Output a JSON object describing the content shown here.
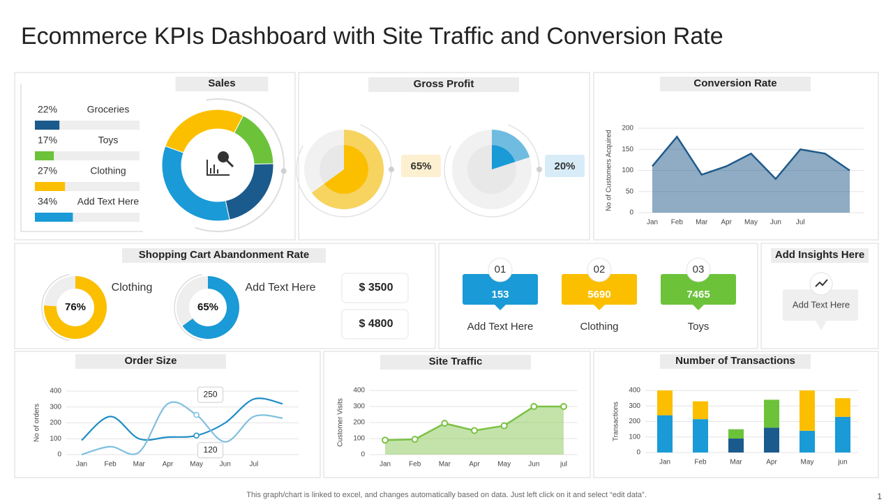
{
  "title": "Ecommerce KPIs Dashboard with Site Traffic and Conversion Rate",
  "footer": "This graph/chart is linked to excel, and changes automatically based on data. Just left click on it and select “edit data”.",
  "page_number": "1",
  "kpis": {
    "items": [
      {
        "number": "01",
        "value": 153,
        "label": "Add Text Here",
        "color": "#1a9ad6"
      },
      {
        "number": "02",
        "value": 5690,
        "label": "Clothing",
        "color": "#fbbf00"
      },
      {
        "number": "03",
        "value": 7465,
        "label": "Toys",
        "color": "#6cc33a"
      }
    ]
  },
  "insights": {
    "title": "Add Insights Here",
    "text": "Add Text Here"
  },
  "chart_data": [
    {
      "type": "progress",
      "title": "Sales",
      "categories": [
        "Groceries",
        "Toys",
        "Clothing",
        "Add Text Here"
      ],
      "values": [
        22,
        17,
        27,
        34
      ],
      "value_labels": [
        "22%",
        "17%",
        "27%",
        "34%"
      ],
      "colors": [
        "#1b5a8c",
        "#6cc33a",
        "#fbbf00",
        "#1a9ad6"
      ]
    },
    {
      "type": "gauge",
      "title": "Gross Profit",
      "values": [
        65,
        20
      ],
      "value_labels": [
        "65%",
        "20%"
      ],
      "colors": [
        "#fbbf00",
        "#1a9ad6"
      ]
    },
    {
      "type": "area",
      "title": "Conversion Rate",
      "categories": [
        "Jan",
        "Feb",
        "Mar",
        "Apr",
        "May",
        "Jun",
        "Jul",
        null,
        null
      ],
      "values": [
        110,
        180,
        90,
        110,
        140,
        80,
        150,
        140,
        100
      ],
      "color": "#1f5a8a",
      "ylabel": "No of Customers Acquired",
      "ylim": [
        0,
        200
      ],
      "yticks": [
        0,
        50,
        100,
        150,
        200
      ],
      "grid": true
    },
    {
      "type": "ring",
      "title": "Shopping Cart Abandonment Rate",
      "categories": [
        "Clothing",
        "Add Text Here"
      ],
      "values": [
        76,
        65
      ],
      "value_labels": [
        "76%",
        "65%"
      ],
      "colors": [
        "#fbbf00",
        "#1a9ad6"
      ],
      "amounts": [
        "$ 3500",
        "$ 4800"
      ]
    },
    {
      "type": "line",
      "title": "Order Size",
      "categories": [
        "Jan",
        "Feb",
        "Mar",
        "Apr",
        "May",
        "Jun",
        "Jul",
        null
      ],
      "series": [
        {
          "color": "#1f8dc5",
          "values": [
            90,
            240,
            100,
            110,
            120,
            200,
            350,
            320
          ],
          "value_labels": [
            null,
            null,
            null,
            null,
            "120",
            null,
            null,
            null
          ]
        },
        {
          "color": "#7fbfe0",
          "values": [
            0,
            50,
            15,
            320,
            250,
            80,
            240,
            230
          ],
          "value_labels": [
            null,
            null,
            null,
            null,
            "250",
            null,
            null,
            null
          ]
        }
      ],
      "ylabel": "No of orders",
      "ylim": [
        0,
        400
      ],
      "yticks": [
        0,
        100,
        200,
        300,
        400
      ],
      "grid": true
    },
    {
      "type": "area",
      "title": "Site Traffic",
      "categories": [
        "Jan",
        "Feb",
        "Mar",
        "Apr",
        "May",
        "Jun",
        "jul"
      ],
      "values": [
        90,
        95,
        195,
        150,
        180,
        300,
        300
      ],
      "color": "#7ac143",
      "markers": true,
      "ylabel": "Customer Visits",
      "ylim": [
        0,
        400
      ],
      "yticks": [
        0,
        100,
        200,
        300,
        400
      ],
      "grid": true
    },
    {
      "type": "stacked-bar",
      "title": "Number of Transactions",
      "categories": [
        "Jan",
        "Feb",
        "Mar",
        "Apr",
        "May",
        "jun"
      ],
      "series": [
        {
          "color": "#1a9ad6",
          "values": [
            240,
            215,
            null,
            null,
            140,
            230
          ]
        },
        {
          "color": "#1b5a8c",
          "values": [
            null,
            null,
            90,
            160,
            null,
            null
          ]
        },
        {
          "color": "#6cc33a",
          "values": [
            null,
            null,
            60,
            180,
            null,
            null
          ]
        },
        {
          "color": "#fbbf00",
          "values": [
            160,
            115,
            null,
            null,
            260,
            120
          ]
        }
      ],
      "ylabel": "Transactions",
      "ylim": [
        0,
        400
      ],
      "yticks": [
        0,
        100,
        200,
        300,
        400
      ],
      "grid": true
    }
  ]
}
